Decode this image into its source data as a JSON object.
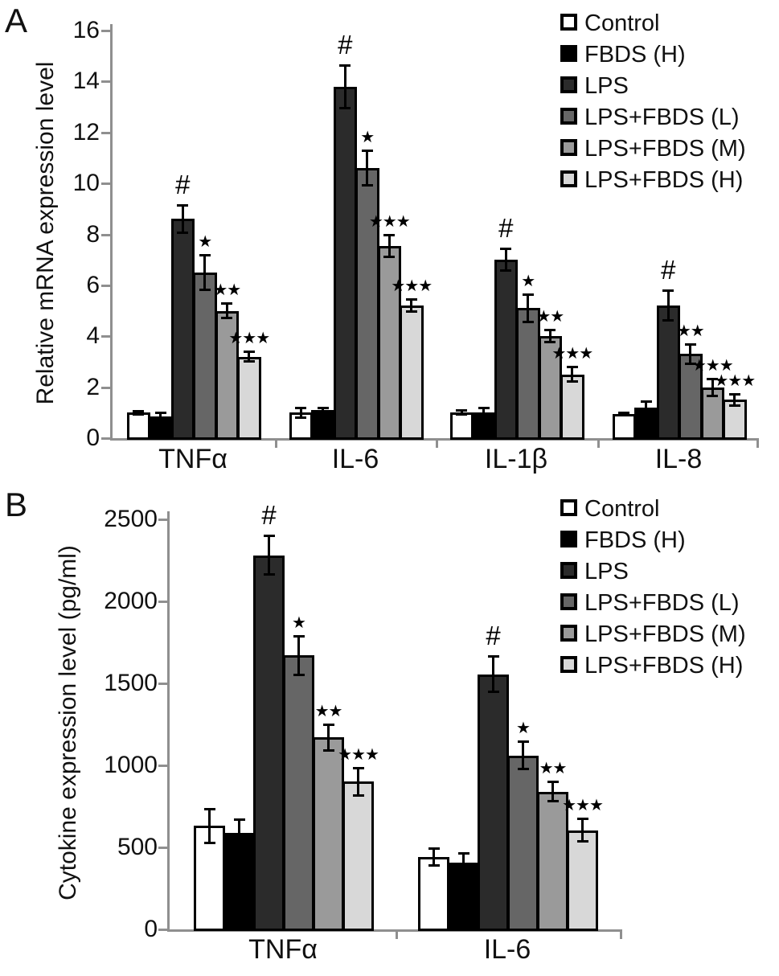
{
  "figure": {
    "background": "#ffffff",
    "axis_color": "#8f8f8f",
    "bar_border_color": "#000000",
    "series": [
      {
        "label": "Control",
        "color": "#ffffff"
      },
      {
        "label": "FBDS (H)",
        "color": "#000000"
      },
      {
        "label": "LPS",
        "color": "#2b2b2b"
      },
      {
        "label": "LPS+FBDS (L)",
        "color": "#666666"
      },
      {
        "label": "LPS+FBDS (M)",
        "color": "#9a9a9a"
      },
      {
        "label": "LPS+FBDS (H)",
        "color": "#d8d8d8"
      }
    ]
  },
  "chart_data": [
    {
      "type": "bar",
      "panel_label": "A",
      "ylabel": "Relative mRNA expression level",
      "xlabel": "",
      "ylim": [
        0,
        16
      ],
      "yticks": [
        0,
        2,
        4,
        6,
        8,
        10,
        12,
        14,
        16
      ],
      "grid": false,
      "legend_position": "top-right",
      "categories": [
        "TNFα",
        "IL-6",
        "IL-1β",
        "IL-8"
      ],
      "series": [
        {
          "name": "Control",
          "values": [
            1.0,
            1.0,
            1.0,
            0.95
          ],
          "errors": [
            0.08,
            0.2,
            0.1,
            0.06
          ],
          "markers": [
            "",
            "",
            "",
            ""
          ]
        },
        {
          "name": "FBDS (H)",
          "values": [
            0.85,
            1.1,
            1.0,
            1.2
          ],
          "errors": [
            0.15,
            0.1,
            0.2,
            0.25
          ],
          "markers": [
            "",
            "",
            "",
            ""
          ]
        },
        {
          "name": "LPS",
          "values": [
            8.6,
            13.8,
            7.0,
            5.2
          ],
          "errors": [
            0.55,
            0.85,
            0.45,
            0.6
          ],
          "markers": [
            "#",
            "#",
            "#",
            "#"
          ]
        },
        {
          "name": "LPS+FBDS (L)",
          "values": [
            6.5,
            10.6,
            5.1,
            3.3
          ],
          "errors": [
            0.7,
            0.7,
            0.55,
            0.4
          ],
          "markers": [
            "★",
            "★",
            "★",
            "★★"
          ]
        },
        {
          "name": "LPS+FBDS (M)",
          "values": [
            5.0,
            7.55,
            4.0,
            2.0
          ],
          "errors": [
            0.3,
            0.45,
            0.25,
            0.35
          ],
          "markers": [
            "★★",
            "★★★",
            "★★",
            "★★★"
          ]
        },
        {
          "name": "LPS+FBDS (H)",
          "values": [
            3.2,
            5.2,
            2.5,
            1.5
          ],
          "errors": [
            0.2,
            0.25,
            0.3,
            0.25
          ],
          "markers": [
            "★★★",
            "★★★",
            "★★★",
            "★★★"
          ]
        }
      ]
    },
    {
      "type": "bar",
      "panel_label": "B",
      "ylabel": "Cytokine expression level (pg/ml)",
      "xlabel": "",
      "ylim": [
        0,
        2500
      ],
      "yticks": [
        0,
        500,
        1000,
        1500,
        2000,
        2500
      ],
      "grid": false,
      "legend_position": "top-right",
      "categories": [
        "TNFα",
        "IL-6"
      ],
      "series": [
        {
          "name": "Control",
          "values": [
            630,
            440
          ],
          "errors": [
            105,
            55
          ],
          "markers": [
            "",
            ""
          ]
        },
        {
          "name": "FBDS (H)",
          "values": [
            590,
            405
          ],
          "errors": [
            80,
            60
          ],
          "markers": [
            "",
            ""
          ]
        },
        {
          "name": "LPS",
          "values": [
            2280,
            1555
          ],
          "errors": [
            120,
            110
          ],
          "markers": [
            "#",
            "#"
          ]
        },
        {
          "name": "LPS+FBDS (L)",
          "values": [
            1670,
            1060
          ],
          "errors": [
            120,
            85
          ],
          "markers": [
            "★",
            "★"
          ]
        },
        {
          "name": "LPS+FBDS (M)",
          "values": [
            1170,
            840
          ],
          "errors": [
            80,
            60
          ],
          "markers": [
            "★★",
            "★★"
          ]
        },
        {
          "name": "LPS+FBDS (H)",
          "values": [
            900,
            605
          ],
          "errors": [
            85,
            70
          ],
          "markers": [
            "★★★",
            "★★★"
          ]
        }
      ]
    }
  ]
}
